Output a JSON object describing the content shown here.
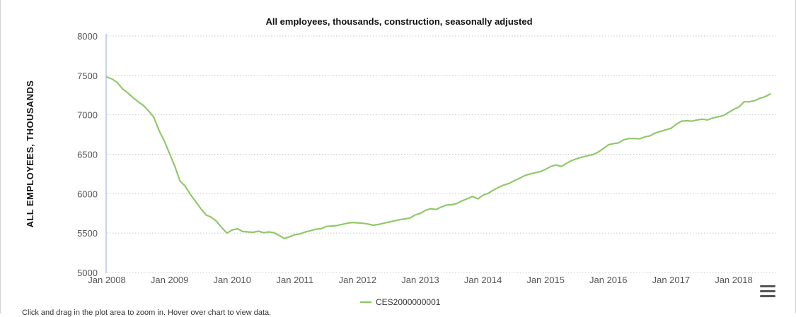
{
  "chart_data": {
    "type": "line",
    "title": "All employees, thousands, construction, seasonally adjusted",
    "xlabel": "",
    "ylabel": "ALL EMPLOYEES, THOUSANDS",
    "ylim": [
      5000,
      8000
    ],
    "yticks": [
      5000,
      5500,
      6000,
      6500,
      7000,
      7500,
      8000
    ],
    "xlim": [
      0,
      128
    ],
    "xticks": [
      {
        "label": "Jan 2008",
        "x": 0
      },
      {
        "label": "Jan 2009",
        "x": 12
      },
      {
        "label": "Jan 2010",
        "x": 24
      },
      {
        "label": "Jan 2011",
        "x": 36
      },
      {
        "label": "Jan 2012",
        "x": 48
      },
      {
        "label": "Jan 2013",
        "x": 60
      },
      {
        "label": "Jan 2014",
        "x": 72
      },
      {
        "label": "Jan 2015",
        "x": 84
      },
      {
        "label": "Jan 2016",
        "x": 96
      },
      {
        "label": "Jan 2017",
        "x": 108
      },
      {
        "label": "Jan 2018",
        "x": 120
      }
    ],
    "x_unit": "months since Jan 2008",
    "series": [
      {
        "name": "CES2000000001",
        "color": "#90c96a",
        "x": [
          0,
          1,
          2,
          3,
          4,
          5,
          6,
          7,
          8,
          9,
          10,
          11,
          12,
          13,
          14,
          15,
          16,
          17,
          18,
          19,
          20,
          21,
          22,
          23,
          24,
          25,
          26,
          27,
          28,
          29,
          30,
          31,
          32,
          33,
          34,
          35,
          36,
          37,
          38,
          39,
          40,
          41,
          42,
          43,
          44,
          45,
          46,
          47,
          48,
          49,
          50,
          51,
          52,
          53,
          54,
          55,
          56,
          57,
          58,
          59,
          60,
          61,
          62,
          63,
          64,
          65,
          66,
          67,
          68,
          69,
          70,
          71,
          72,
          73,
          74,
          75,
          76,
          77,
          78,
          79,
          80,
          81,
          82,
          83,
          84,
          85,
          86,
          87,
          88,
          89,
          90,
          91,
          92,
          93,
          94,
          95,
          96,
          97,
          98,
          99,
          100,
          101,
          102,
          103,
          104,
          105,
          106,
          107,
          108,
          109,
          110,
          111,
          112,
          113,
          114,
          115,
          116,
          117,
          118,
          119,
          120,
          121,
          122,
          123,
          124,
          125,
          126,
          127
        ],
        "values": [
          7480,
          7455,
          7410,
          7330,
          7280,
          7220,
          7165,
          7120,
          7050,
          6970,
          6800,
          6670,
          6510,
          6350,
          6160,
          6095,
          5990,
          5900,
          5810,
          5730,
          5700,
          5650,
          5570,
          5500,
          5540,
          5555,
          5520,
          5515,
          5510,
          5525,
          5505,
          5515,
          5505,
          5470,
          5430,
          5455,
          5480,
          5490,
          5515,
          5530,
          5550,
          5555,
          5585,
          5590,
          5595,
          5610,
          5625,
          5635,
          5630,
          5625,
          5615,
          5600,
          5610,
          5625,
          5640,
          5655,
          5670,
          5680,
          5690,
          5730,
          5750,
          5790,
          5810,
          5800,
          5830,
          5855,
          5860,
          5875,
          5910,
          5935,
          5965,
          5935,
          5980,
          6005,
          6045,
          6080,
          6110,
          6130,
          6165,
          6195,
          6230,
          6250,
          6265,
          6280,
          6310,
          6345,
          6365,
          6345,
          6385,
          6420,
          6445,
          6465,
          6480,
          6495,
          6525,
          6570,
          6620,
          6635,
          6645,
          6685,
          6700,
          6700,
          6695,
          6720,
          6735,
          6770,
          6790,
          6810,
          6830,
          6880,
          6920,
          6925,
          6920,
          6935,
          6945,
          6935,
          6960,
          6975,
          6990,
          7030,
          7070,
          7100,
          7165,
          7165,
          7180,
          7210,
          7230,
          7265
        ]
      }
    ]
  },
  "legend": {
    "label": "CES2000000001"
  },
  "instructions": "Click and drag in the plot area to zoom in. Hover over chart to view data."
}
